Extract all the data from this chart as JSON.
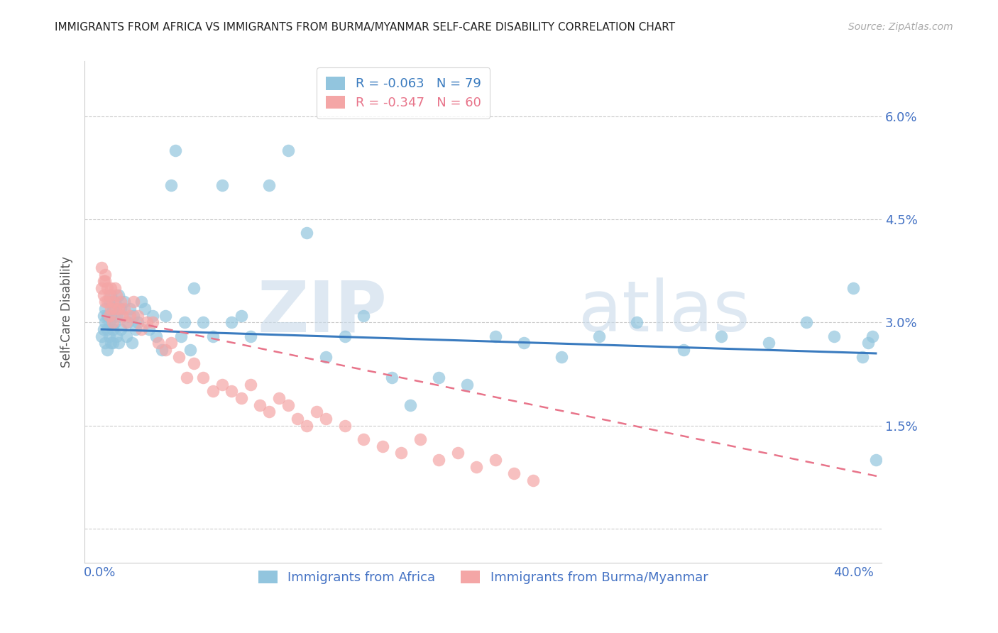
{
  "title": "IMMIGRANTS FROM AFRICA VS IMMIGRANTS FROM BURMA/MYANMAR SELF-CARE DISABILITY CORRELATION CHART",
  "source": "Source: ZipAtlas.com",
  "ylabel": "Self-Care Disability",
  "x_ticks": [
    0.0,
    0.1,
    0.2,
    0.3,
    0.4
  ],
  "x_tick_labels": [
    "0.0%",
    "",
    "",
    "",
    "40.0%"
  ],
  "y_ticks": [
    0.0,
    0.015,
    0.03,
    0.045,
    0.06
  ],
  "y_tick_labels": [
    "",
    "1.5%",
    "3.0%",
    "4.5%",
    "6.0%"
  ],
  "xlim": [
    -0.008,
    0.415
  ],
  "ylim": [
    -0.005,
    0.068
  ],
  "legend1_label": "R = -0.063   N = 79",
  "legend2_label": "R = -0.347   N = 60",
  "legend_label1": "Immigrants from Africa",
  "legend_label2": "Immigrants from Burma/Myanmar",
  "africa_color": "#92c5de",
  "burma_color": "#f4a6a6",
  "africa_line_color": "#3a7bbf",
  "burma_line_color": "#e8748a",
  "axis_color": "#4472c4",
  "grid_color": "#cccccc",
  "watermark_zip": "ZIP",
  "watermark_atlas": "atlas",
  "africa_x": [
    0.001,
    0.002,
    0.002,
    0.003,
    0.003,
    0.003,
    0.004,
    0.004,
    0.004,
    0.005,
    0.005,
    0.005,
    0.006,
    0.006,
    0.006,
    0.007,
    0.007,
    0.007,
    0.008,
    0.008,
    0.009,
    0.009,
    0.01,
    0.01,
    0.011,
    0.011,
    0.012,
    0.013,
    0.014,
    0.015,
    0.016,
    0.017,
    0.018,
    0.019,
    0.02,
    0.022,
    0.024,
    0.026,
    0.028,
    0.03,
    0.033,
    0.035,
    0.038,
    0.04,
    0.043,
    0.045,
    0.048,
    0.05,
    0.055,
    0.06,
    0.065,
    0.07,
    0.075,
    0.08,
    0.09,
    0.1,
    0.11,
    0.12,
    0.13,
    0.14,
    0.155,
    0.165,
    0.18,
    0.195,
    0.21,
    0.225,
    0.245,
    0.265,
    0.285,
    0.31,
    0.33,
    0.355,
    0.375,
    0.39,
    0.4,
    0.405,
    0.408,
    0.41,
    0.412
  ],
  "africa_y": [
    0.028,
    0.029,
    0.031,
    0.027,
    0.03,
    0.032,
    0.026,
    0.029,
    0.031,
    0.028,
    0.03,
    0.033,
    0.027,
    0.031,
    0.034,
    0.029,
    0.032,
    0.027,
    0.033,
    0.03,
    0.028,
    0.031,
    0.034,
    0.027,
    0.032,
    0.029,
    0.031,
    0.033,
    0.028,
    0.03,
    0.032,
    0.027,
    0.031,
    0.029,
    0.03,
    0.033,
    0.032,
    0.029,
    0.031,
    0.028,
    0.026,
    0.031,
    0.05,
    0.055,
    0.028,
    0.03,
    0.026,
    0.035,
    0.03,
    0.028,
    0.05,
    0.03,
    0.031,
    0.028,
    0.05,
    0.055,
    0.043,
    0.025,
    0.028,
    0.031,
    0.022,
    0.018,
    0.022,
    0.021,
    0.028,
    0.027,
    0.025,
    0.028,
    0.03,
    0.026,
    0.028,
    0.027,
    0.03,
    0.028,
    0.035,
    0.025,
    0.027,
    0.028,
    0.01
  ],
  "burma_x": [
    0.001,
    0.001,
    0.002,
    0.002,
    0.003,
    0.003,
    0.003,
    0.004,
    0.004,
    0.005,
    0.005,
    0.006,
    0.006,
    0.007,
    0.007,
    0.008,
    0.008,
    0.009,
    0.01,
    0.011,
    0.012,
    0.013,
    0.014,
    0.016,
    0.018,
    0.02,
    0.022,
    0.025,
    0.028,
    0.031,
    0.035,
    0.038,
    0.042,
    0.046,
    0.05,
    0.055,
    0.06,
    0.065,
    0.07,
    0.075,
    0.08,
    0.085,
    0.09,
    0.095,
    0.1,
    0.105,
    0.11,
    0.115,
    0.12,
    0.13,
    0.14,
    0.15,
    0.16,
    0.17,
    0.18,
    0.19,
    0.2,
    0.21,
    0.22,
    0.23
  ],
  "burma_y": [
    0.035,
    0.038,
    0.034,
    0.036,
    0.037,
    0.033,
    0.036,
    0.035,
    0.033,
    0.031,
    0.034,
    0.035,
    0.032,
    0.033,
    0.03,
    0.035,
    0.032,
    0.034,
    0.032,
    0.033,
    0.031,
    0.032,
    0.03,
    0.031,
    0.033,
    0.031,
    0.029,
    0.03,
    0.03,
    0.027,
    0.026,
    0.027,
    0.025,
    0.022,
    0.024,
    0.022,
    0.02,
    0.021,
    0.02,
    0.019,
    0.021,
    0.018,
    0.017,
    0.019,
    0.018,
    0.016,
    0.015,
    0.017,
    0.016,
    0.015,
    0.013,
    0.012,
    0.011,
    0.013,
    0.01,
    0.011,
    0.009,
    0.01,
    0.008,
    0.007
  ],
  "africa_line_x": [
    0.001,
    0.412
  ],
  "africa_line_y_start": 0.029,
  "africa_line_y_end": 0.0255,
  "burma_line_x_start": 0.001,
  "burma_line_x_end": 0.415,
  "burma_line_y_start": 0.031,
  "burma_line_y_end": 0.0075
}
